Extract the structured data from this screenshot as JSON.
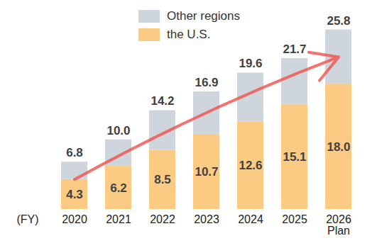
{
  "chart_data": {
    "type": "bar",
    "stacked": true,
    "x_label": "(FY)",
    "categories": [
      "2020",
      "2021",
      "2022",
      "2023",
      "2024",
      "2025",
      "2026 Plan"
    ],
    "series": [
      {
        "name": "Other regions",
        "color": "#CFD5DC",
        "values": [
          2.5,
          3.8,
          5.7,
          6.2,
          7.0,
          6.6,
          7.8
        ]
      },
      {
        "name": "the U.S.",
        "color": "#FBCB83",
        "values": [
          4.3,
          6.2,
          8.5,
          10.7,
          12.6,
          15.1,
          18.0
        ],
        "value_labels": [
          "4.3",
          "6.2",
          "8.5",
          "10.7",
          "12.6",
          "15.1",
          "18.0"
        ]
      }
    ],
    "totals": [
      6.8,
      10.0,
      14.2,
      16.9,
      19.6,
      21.7,
      25.8
    ],
    "total_labels": [
      "6.8",
      "10.0",
      "14.2",
      "16.9",
      "19.6",
      "21.7",
      "25.8"
    ],
    "data_labels": true,
    "ylim": [
      0,
      28
    ],
    "legend": "top-left",
    "tick_labels": "x"
  }
}
